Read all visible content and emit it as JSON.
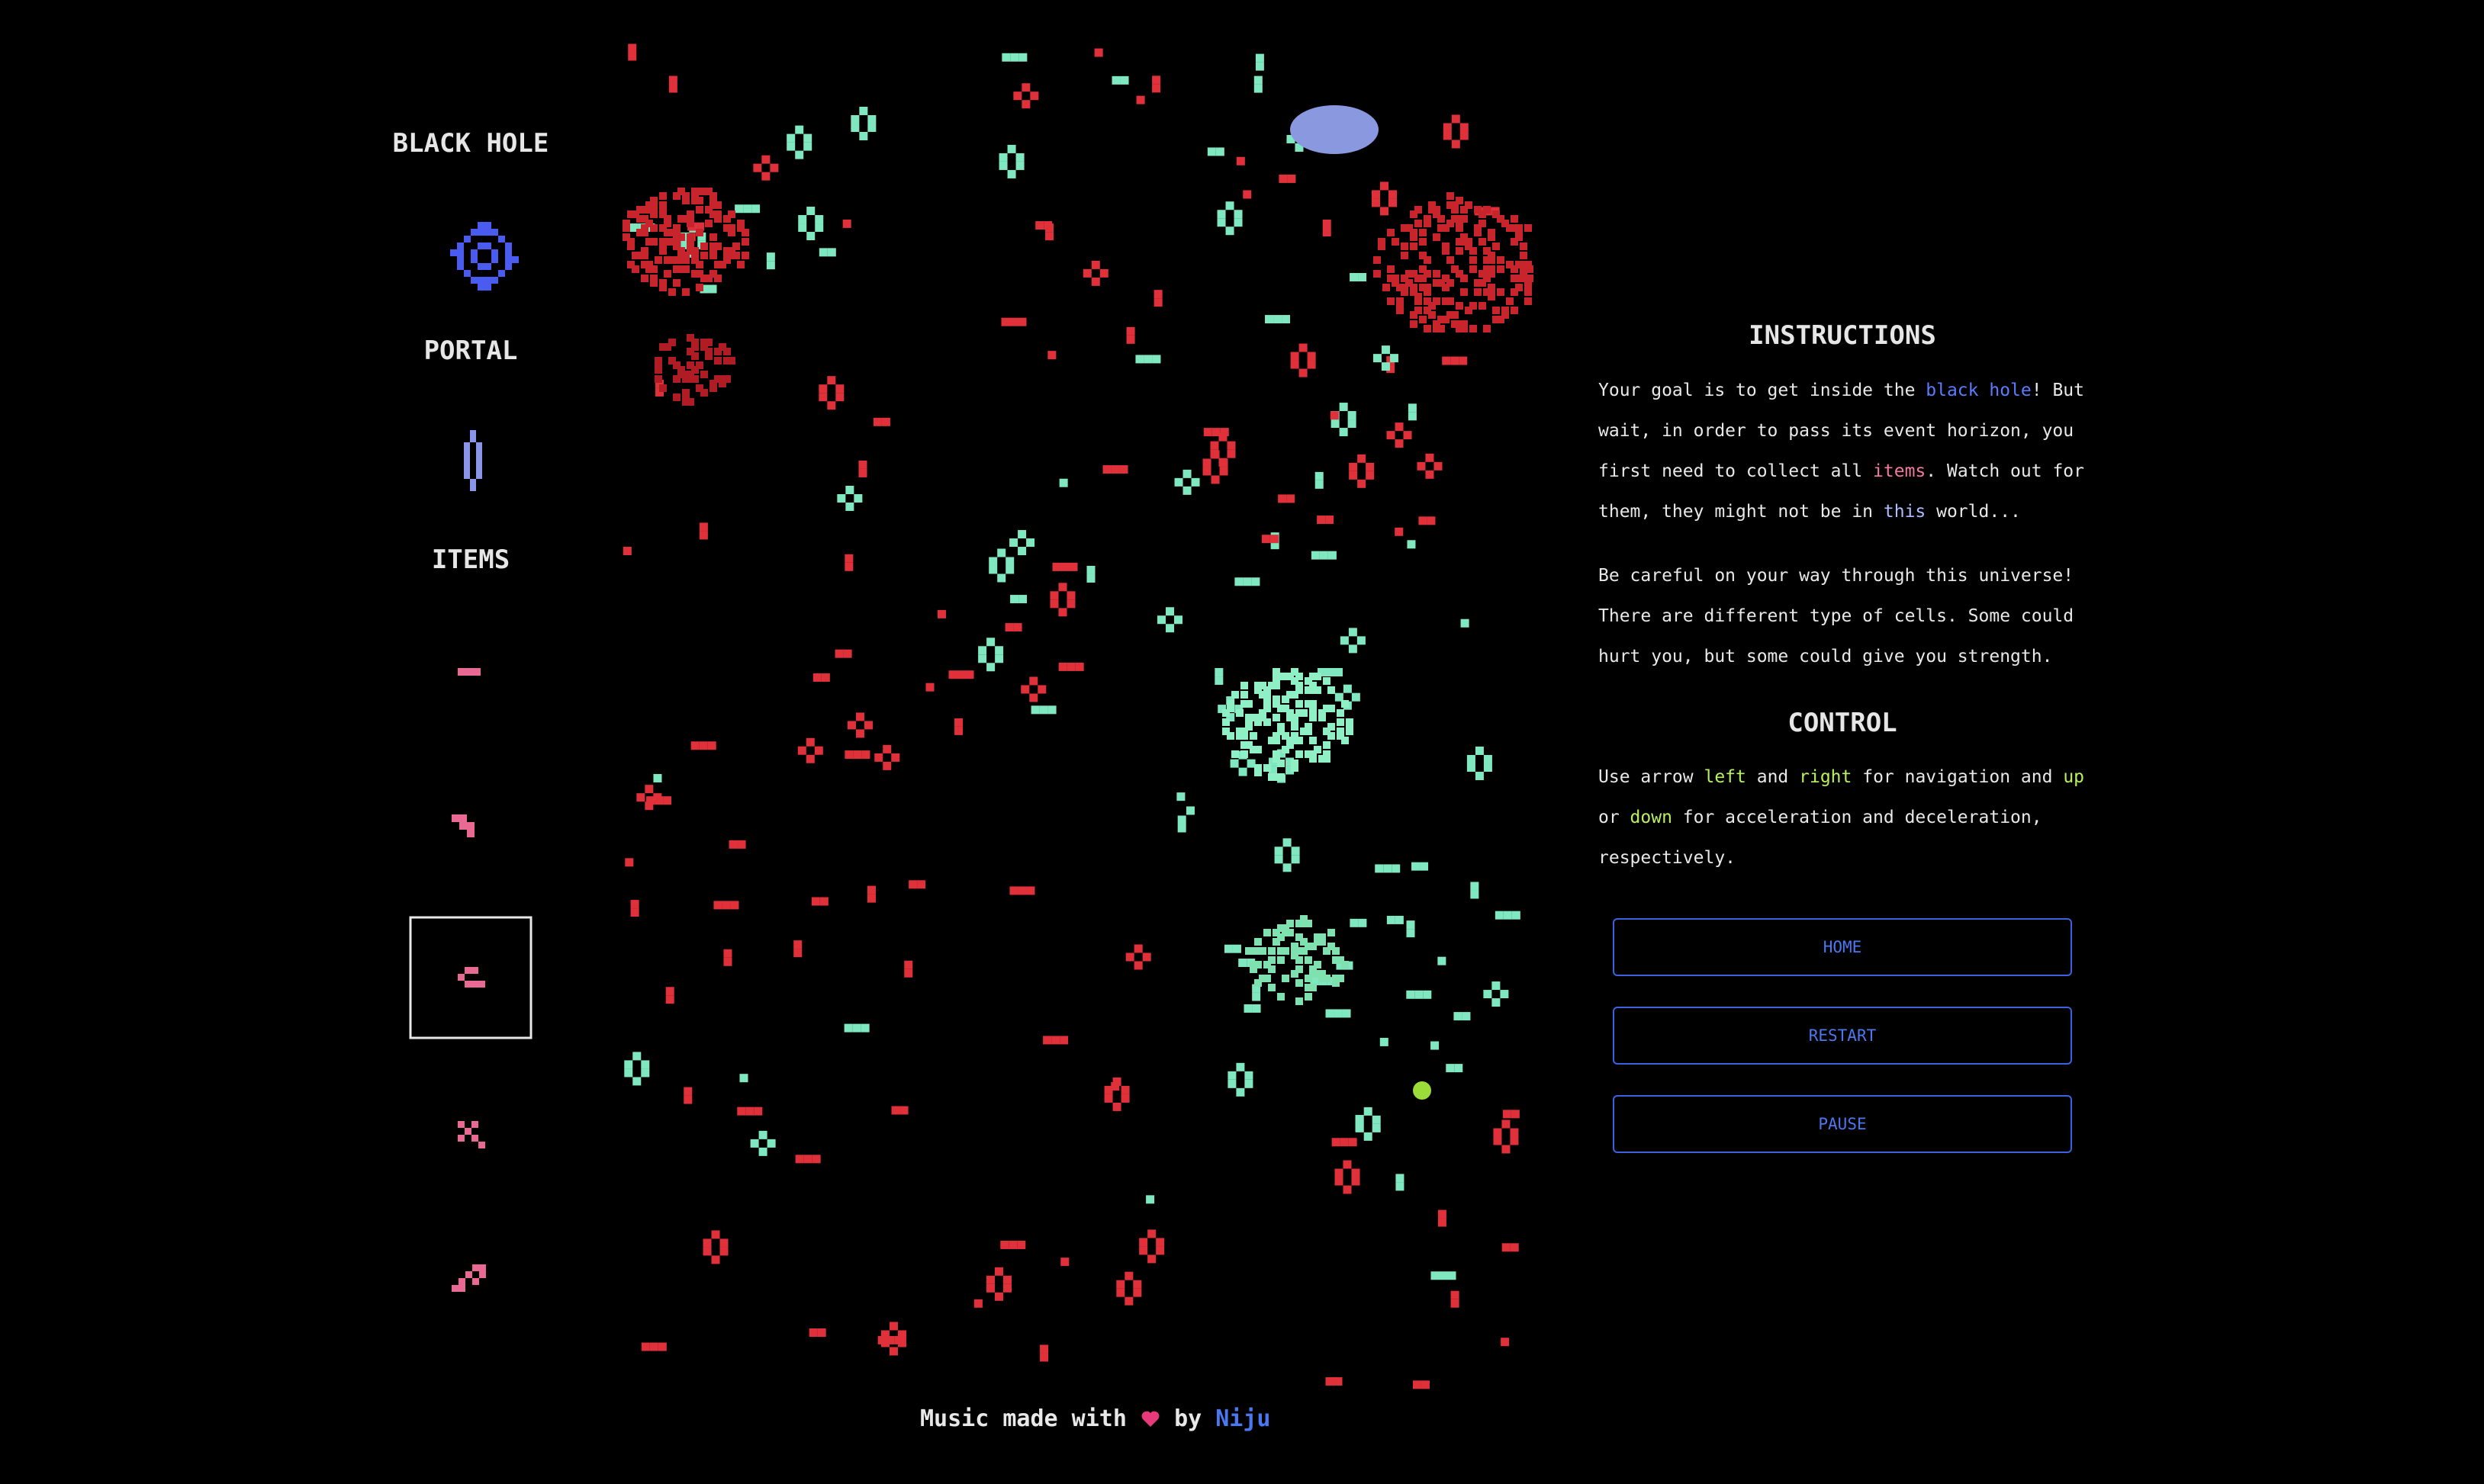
{
  "sidebar": {
    "black_hole_label": "BLACK HOLE",
    "portal_label": "PORTAL",
    "items_label": "ITEMS"
  },
  "instructions": {
    "title": "INSTRUCTIONS",
    "paragraphs": [
      [
        "Your goal is to get inside the ",
        "black hole",
        "! But wait, in order to pass its event horizon, you first need to collect all ",
        "items",
        ". Watch out for them, they might not be in ",
        "this",
        " world..."
      ],
      [
        "Be careful on your way through this universe! There are different type of cells. Some could hurt you, but some could give you strength."
      ]
    ]
  },
  "control": {
    "title": "CONTROL",
    "text": [
      "Use arrow ",
      "left",
      " and ",
      "right",
      " for navigation and ",
      "up",
      " or ",
      "down",
      " for acceleration and deceleration, respectively."
    ]
  },
  "buttons": [
    "HOME",
    "RESTART",
    "PAUSE"
  ],
  "footer": {
    "prefix": "Music made with",
    "by": "by",
    "author": "Niju"
  }
}
